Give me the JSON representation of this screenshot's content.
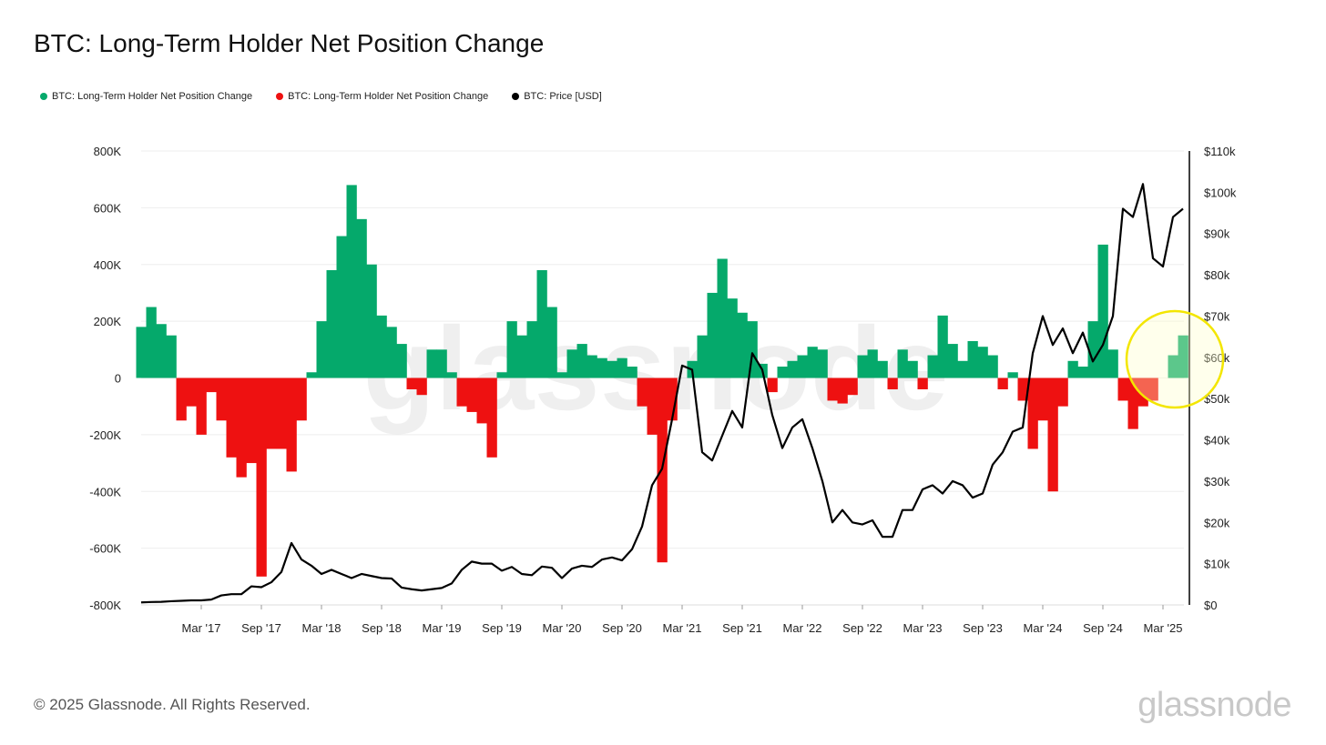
{
  "chart_data": {
    "type": "area",
    "title": "BTC: Long-Term Holder Net Position Change",
    "legend": [
      {
        "label": "BTC: Long-Term Holder Net Position Change",
        "color": "#05a96b"
      },
      {
        "label": "BTC: Long-Term Holder Net Position Change",
        "color": "#ee1111"
      },
      {
        "label": "BTC: Price [USD]",
        "color": "#000000"
      }
    ],
    "legend_position": "top-left",
    "watermark": "glassnode",
    "x_start": "Sep 2016",
    "x_step": "1 month",
    "x_ticks": [
      "Mar '17",
      "Sep '17",
      "Mar '18",
      "Sep '18",
      "Mar '19",
      "Sep '19",
      "Mar '20",
      "Sep '20",
      "Mar '21",
      "Sep '21",
      "Mar '22",
      "Sep '22",
      "Mar '23",
      "Sep '23",
      "Mar '24",
      "Sep '24",
      "Mar '25"
    ],
    "x_tick_month_index": [
      6,
      12,
      18,
      24,
      30,
      36,
      42,
      48,
      54,
      60,
      66,
      72,
      78,
      84,
      90,
      96,
      102
    ],
    "y_left": {
      "label": "BTC",
      "ylim": [
        -800,
        800
      ],
      "unit": "K",
      "ticks": [
        "800K",
        "600K",
        "400K",
        "200K",
        "0",
        "-200K",
        "-400K",
        "-600K",
        "-800K"
      ],
      "tick_values": [
        800,
        600,
        400,
        200,
        0,
        -200,
        -400,
        -600,
        -800
      ]
    },
    "y_right": {
      "label": "Price [USD]",
      "ylim": [
        0,
        110
      ],
      "unit": "k USD",
      "ticks": [
        "$110k",
        "$100k",
        "$90k",
        "$80k",
        "$70k",
        "$60k",
        "$50k",
        "$40k",
        "$30k",
        "$20k",
        "$10k",
        "$0"
      ],
      "tick_values": [
        110,
        100,
        90,
        80,
        70,
        60,
        50,
        40,
        30,
        20,
        10,
        0
      ]
    },
    "grid": true,
    "series": [
      {
        "name": "BTC: Long-Term Holder Net Position Change (K BTC)",
        "axis": "left",
        "values": [
          180,
          250,
          190,
          150,
          -150,
          -100,
          -200,
          -50,
          -150,
          -280,
          -350,
          -300,
          -700,
          -250,
          -250,
          -330,
          -150,
          20,
          200,
          380,
          500,
          680,
          560,
          400,
          220,
          180,
          120,
          -40,
          -60,
          100,
          100,
          20,
          -100,
          -120,
          -160,
          -280,
          20,
          200,
          150,
          200,
          380,
          250,
          20,
          100,
          120,
          80,
          70,
          60,
          70,
          40,
          -100,
          -200,
          -650,
          -150,
          0,
          60,
          150,
          300,
          420,
          280,
          230,
          200,
          50,
          -50,
          40,
          60,
          80,
          110,
          100,
          -80,
          -90,
          -60,
          80,
          100,
          60,
          -40,
          100,
          60,
          -40,
          80,
          220,
          120,
          60,
          130,
          110,
          80,
          -40,
          20,
          -80,
          -250,
          -150,
          -400,
          -100,
          60,
          40,
          200,
          470,
          100,
          -80,
          -180,
          -100,
          -80,
          0,
          80,
          150
        ]
      },
      {
        "name": "BTC: Price [USD] (k)",
        "axis": "right",
        "values": [
          0.6,
          0.7,
          0.74,
          0.9,
          1.0,
          1.1,
          1.1,
          1.3,
          2.3,
          2.6,
          2.6,
          4.5,
          4.3,
          5.5,
          8,
          15,
          11,
          9.5,
          7.5,
          8.5,
          7.5,
          6.5,
          7.5,
          7,
          6.5,
          6.4,
          4.2,
          3.8,
          3.5,
          3.8,
          4.1,
          5.2,
          8.5,
          10.5,
          10,
          10,
          8.3,
          9.2,
          7.5,
          7.2,
          9.3,
          9,
          6.5,
          8.8,
          9.5,
          9.2,
          11,
          11.5,
          10.8,
          13.5,
          19,
          29,
          33,
          45,
          58,
          57,
          37,
          35,
          41,
          47,
          43,
          61,
          57,
          46,
          38,
          43,
          45,
          38,
          30,
          20,
          23,
          20,
          19.5,
          20.5,
          16.5,
          16.5,
          23,
          23,
          28,
          29,
          27,
          30,
          29,
          26,
          27,
          34,
          37,
          42,
          43,
          61,
          70,
          63,
          67,
          61,
          66,
          59,
          63,
          70,
          96,
          94,
          102,
          84,
          82,
          94,
          96
        ]
      }
    ],
    "annotation": "yellow highlight circle around recent LTH net position change (Mar–May 2025)"
  },
  "footer": {
    "copyright": "© 2025 Glassnode. All Rights Reserved.",
    "brand": "glassnode"
  }
}
